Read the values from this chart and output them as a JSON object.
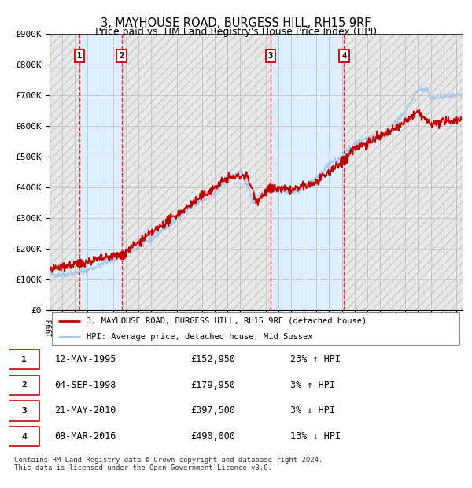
{
  "title": "3, MAYHOUSE ROAD, BURGESS HILL, RH15 9RF",
  "subtitle": "Price paid vs. HM Land Registry's House Price Index (HPI)",
  "ylim": [
    0,
    900000
  ],
  "yticks": [
    0,
    100000,
    200000,
    300000,
    400000,
    500000,
    600000,
    700000,
    800000,
    900000
  ],
  "ytick_labels": [
    "£0",
    "£100K",
    "£200K",
    "£300K",
    "£400K",
    "£500K",
    "£600K",
    "£700K",
    "£800K",
    "£900K"
  ],
  "xlim_start": 1993.0,
  "xlim_end": 2025.5,
  "hpi_line_color": "#a8c8e8",
  "price_line_color": "#c00000",
  "sale_marker_color": "#c00000",
  "shade_color": "#ddeeff",
  "grid_color": "#bbbbbb",
  "hatch_color": "#e0e0e0",
  "transactions": [
    {
      "id": 1,
      "date": 1995.36,
      "price": 152950,
      "label": "1"
    },
    {
      "id": 2,
      "date": 1998.67,
      "price": 179950,
      "label": "2"
    },
    {
      "id": 3,
      "date": 2010.38,
      "price": 397500,
      "label": "3"
    },
    {
      "id": 4,
      "date": 2016.18,
      "price": 490000,
      "label": "4"
    }
  ],
  "legend_line1": "3, MAYHOUSE ROAD, BURGESS HILL, RH15 9RF (detached house)",
  "legend_line2": "HPI: Average price, detached house, Mid Sussex",
  "table_rows": [
    {
      "id": "1",
      "date": "12-MAY-1995",
      "price": "£152,950",
      "hpi": "23% ↑ HPI"
    },
    {
      "id": "2",
      "date": "04-SEP-1998",
      "price": "£179,950",
      "hpi": "3% ↑ HPI"
    },
    {
      "id": "3",
      "date": "21-MAY-2010",
      "price": "£397,500",
      "hpi": "3% ↓ HPI"
    },
    {
      "id": "4",
      "date": "08-MAR-2016",
      "price": "£490,000",
      "hpi": "13% ↓ HPI"
    }
  ],
  "footer": "Contains HM Land Registry data © Crown copyright and database right 2024.\nThis data is licensed under the Open Government Licence v3.0.",
  "hpi_knots_x": [
    1993,
    1994,
    1995,
    1996,
    1997,
    1998,
    1999,
    2000,
    2001,
    2002,
    2003,
    2004,
    2005,
    2006,
    2007,
    2008,
    2008.6,
    2009.0,
    2009.5,
    2010,
    2011,
    2012,
    2013,
    2014,
    2015,
    2016,
    2017,
    2018,
    2019,
    2020,
    2021,
    2022,
    2022.8,
    2023,
    2024,
    2025.4
  ],
  "hpi_knots_y": [
    115000,
    115000,
    120000,
    130000,
    148000,
    165000,
    185000,
    205000,
    230000,
    265000,
    295000,
    330000,
    355000,
    380000,
    430000,
    450000,
    410000,
    350000,
    360000,
    395000,
    390000,
    385000,
    395000,
    430000,
    475000,
    500000,
    545000,
    560000,
    570000,
    590000,
    650000,
    720000,
    715000,
    690000,
    695000,
    700000
  ],
  "price_knots_x": [
    1993,
    1995.36,
    1998.67,
    2003,
    2007,
    2008.5,
    2009.3,
    2010.38,
    2012,
    2014,
    2016.18,
    2017,
    2018,
    2019,
    2020,
    2021,
    2022,
    2023,
    2024,
    2025.4
  ],
  "price_knots_y": [
    130000,
    152950,
    179950,
    310000,
    430000,
    440000,
    355000,
    397500,
    390000,
    415000,
    490000,
    530000,
    545000,
    565000,
    585000,
    615000,
    645000,
    605000,
    615000,
    622000
  ]
}
